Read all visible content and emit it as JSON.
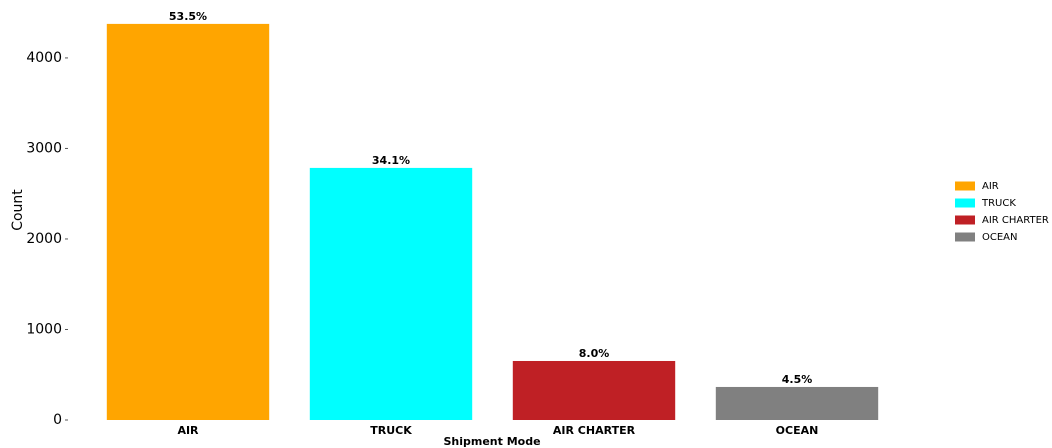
{
  "chart_data": {
    "type": "bar",
    "xlabel": "Shipment Mode",
    "ylabel": "Count",
    "categories": [
      "AIR",
      "TRUCK",
      "AIR CHARTER",
      "OCEAN"
    ],
    "values": [
      4376,
      2785,
      652,
      365
    ],
    "percent_labels": [
      "53.5%",
      "34.1%",
      "8.0%",
      "4.5%"
    ],
    "colors": [
      "#ffa500",
      "#00ffff",
      "#bf2025",
      "#808080"
    ],
    "ylim": [
      0,
      4640
    ],
    "yticks": [
      0,
      1000,
      2000,
      3000,
      4000
    ],
    "grid": false,
    "legend": "right"
  }
}
